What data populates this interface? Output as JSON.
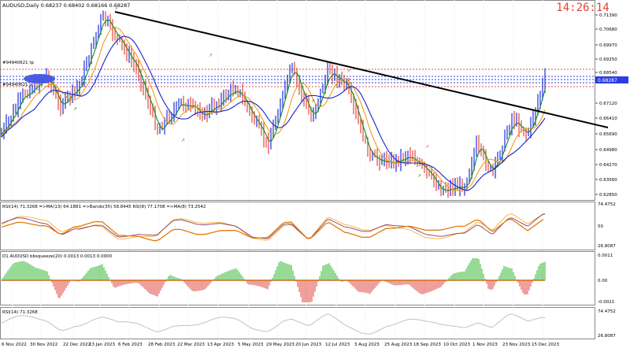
{
  "header": {
    "symbol_info": "AUDUSD,Daily  0.68237 0.68402 0.68166 0.68287",
    "clock": "14:26:14"
  },
  "price_panel": {
    "labels_left": [
      "#94940621 tp",
      "#94940621 sl"
    ],
    "current_price": "0.68287",
    "axis_ticks": [
      "0.71390",
      "0.70680",
      "0.69970",
      "0.69250",
      "0.68540",
      "0.67120",
      "0.66410",
      "0.65690",
      "0.64980",
      "0.64270",
      "0.63560",
      "0.62850"
    ]
  },
  "rsi_panel": {
    "caption": "RSI(14) 71.3268   =>MA(13) 64.1881  =>Bands(35) 58.8445  RSI(8) 77.1708   =>MA(8) 73.2542",
    "axis_ticks": [
      "74.4752",
      "50",
      "26.8087"
    ]
  },
  "squeeze_panel": {
    "caption": "D1 AUDUSD bbsqueeze(20) 0.0013 0.0013 0.0000",
    "axis_ticks": [
      "0.0011",
      "0.00",
      "-0.0021"
    ]
  },
  "rsi2_panel": {
    "caption": "RSI(14) 71.3268",
    "axis_ticks": [
      "74.4752",
      "26.8087"
    ]
  },
  "time_axis": [
    "6 Nov 2022",
    "30 Nov 2022",
    "22 Dec 2022",
    "13 Jan 2023",
    "6 Feb 2023",
    "28 Feb 2023",
    "22 Mar 2023",
    "13 Apr 2023",
    "5 May 2023",
    "29 May 2023",
    "20 Jun 2023",
    "12 Jul 2023",
    "3 Aug 2023",
    "25 Aug 2023",
    "18 Sep 2023",
    "10 Oct 2023",
    "1 Nov 2023",
    "23 Nov 2023",
    "15 Dec 2023"
  ],
  "colors": {
    "bull": "#1f2fe0",
    "bear": "#e2463c",
    "ma_fast": "#109010",
    "ma_mid": "#f39a1c",
    "ma_slow": "#1424c8",
    "rsi_main": "#8e3a5a",
    "rsi_ma": "#f5a623",
    "hist_pos": "#2db52d",
    "hist_neg": "#e0413a"
  }
}
